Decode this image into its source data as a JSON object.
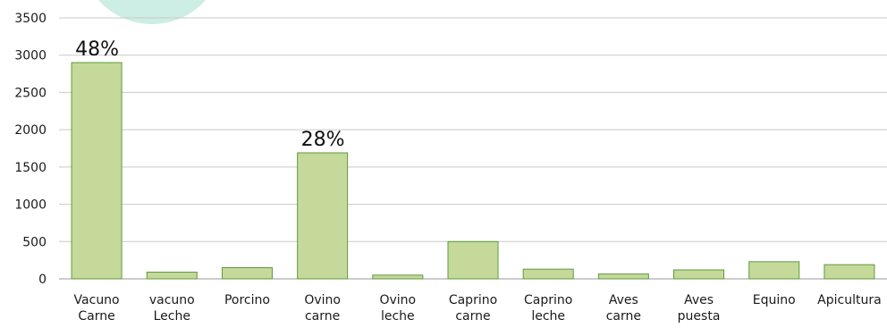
{
  "chart_data": {
    "type": "bar",
    "title": "",
    "xlabel": "",
    "ylabel": "",
    "ylim": [
      0,
      3500
    ],
    "yticks": [
      0,
      500,
      1000,
      1500,
      2000,
      2500,
      3000,
      3500
    ],
    "grid": true,
    "legend": "none",
    "categories": [
      [
        "Vacuno",
        "Carne"
      ],
      [
        "vacuno",
        "Leche"
      ],
      [
        "Porcino"
      ],
      [
        "Ovino",
        "carne"
      ],
      [
        "Ovino",
        "leche"
      ],
      [
        "Caprino",
        "carne"
      ],
      [
        "Caprino",
        "leche"
      ],
      [
        "Aves",
        "carne"
      ],
      [
        "Aves",
        "puesta"
      ],
      [
        "Equino"
      ],
      [
        "Apicultura"
      ]
    ],
    "values": [
      2900,
      90,
      150,
      1690,
      50,
      500,
      130,
      65,
      120,
      230,
      190
    ],
    "annotations": [
      {
        "category_index": 0,
        "text": "48%"
      },
      {
        "category_index": 3,
        "text": "28%"
      }
    ]
  },
  "colors": {
    "bar_fill": "#c5d99a",
    "bar_stroke": "#5e9a3c",
    "grid": "#c9c9c9",
    "axis": "#9a9a9a",
    "watermark": "#cdeee4"
  }
}
